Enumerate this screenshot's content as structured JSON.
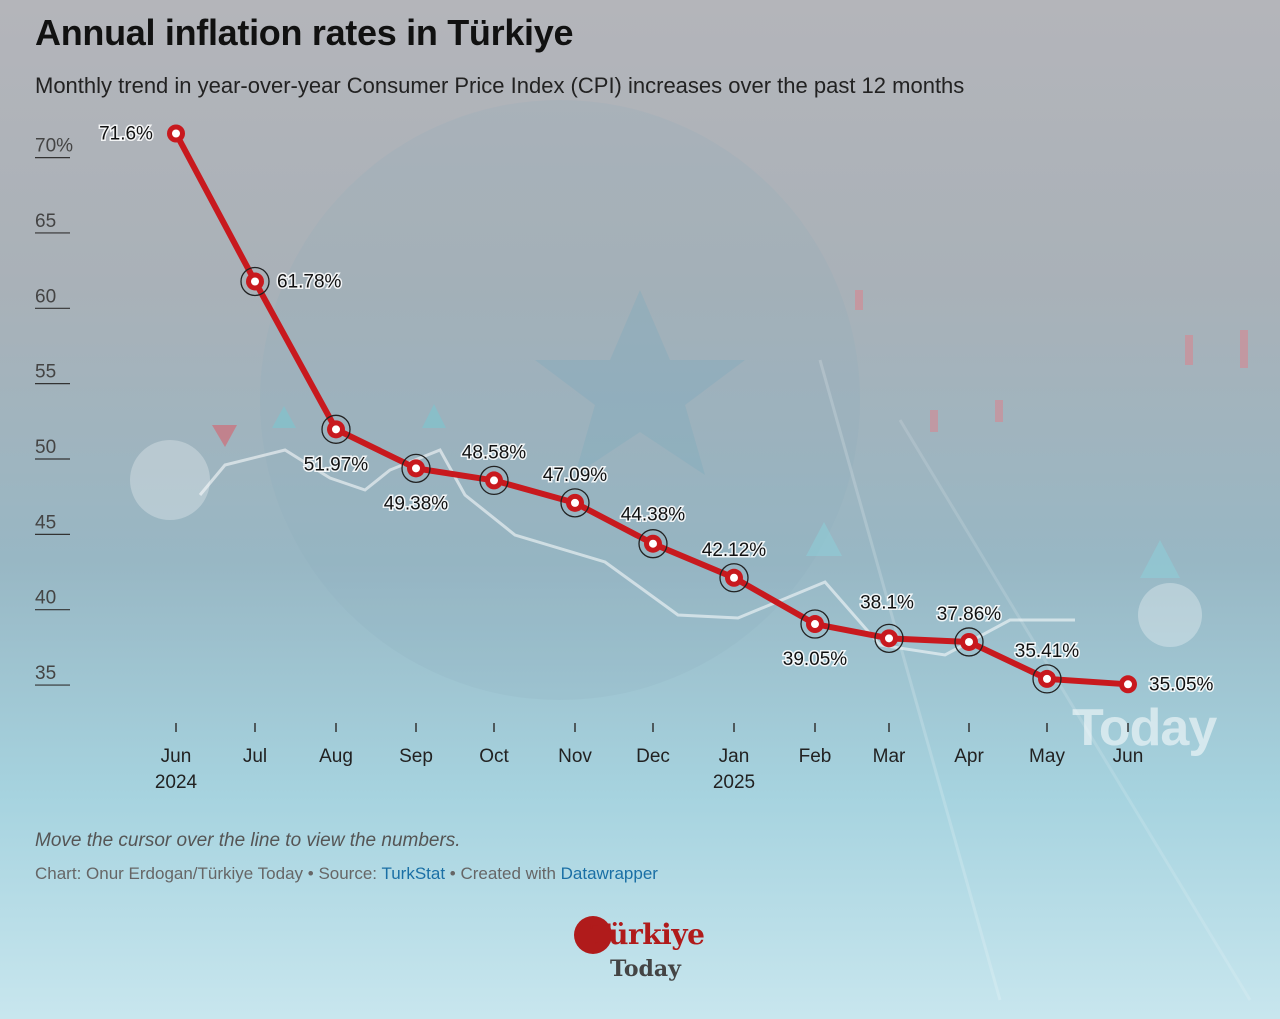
{
  "title": "Annual inflation rates in Türkiye",
  "subtitle": "Monthly trend in year-over-year Consumer Price Index (CPI) increases over the past 12 months",
  "notes": "Move the cursor over the line to view the numbers.",
  "footer": {
    "prefix": "Chart: Onur Erdogan/Türkiye Today • Source: ",
    "source_link": "TurkStat",
    "middle": " • Created with ",
    "tool_link": "Datawrapper"
  },
  "logo": {
    "main": "Türkiye",
    "sub": "Today"
  },
  "watermark": "Today",
  "colors": {
    "line": "#c8191e",
    "marker_fill": "#ffffff",
    "text": "#111111"
  },
  "chart_data": {
    "type": "line",
    "title": "Annual inflation rates in Türkiye",
    "x": [
      "Jun",
      "Jul",
      "Aug",
      "Sep",
      "Oct",
      "Nov",
      "Dec",
      "Jan",
      "Feb",
      "Mar",
      "Apr",
      "May",
      "Jun"
    ],
    "x_year_labels": {
      "0": "2024",
      "7": "2025"
    },
    "series": [
      {
        "values": [
          71.6,
          61.78,
          51.97,
          49.38,
          48.58,
          47.09,
          44.38,
          42.12,
          39.05,
          38.1,
          37.86,
          35.41,
          35.05
        ]
      }
    ],
    "data_labels": [
      "71.6%",
      "61.78%",
      "51.97%",
      "49.38%",
      "48.58%",
      "47.09%",
      "44.38%",
      "42.12%",
      "39.05%",
      "38.1%",
      "37.86%",
      "35.41%",
      "35.05%"
    ],
    "y_ticks": [
      {
        "value": 70,
        "label": "70%"
      },
      {
        "value": 65,
        "label": "65"
      },
      {
        "value": 60,
        "label": "60"
      },
      {
        "value": 55,
        "label": "55"
      },
      {
        "value": 50,
        "label": "50"
      },
      {
        "value": 45,
        "label": "45"
      },
      {
        "value": 40,
        "label": "40"
      },
      {
        "value": 35,
        "label": "35"
      }
    ],
    "ylim": [
      32,
      71.6
    ],
    "grid": false,
    "legend": "none"
  }
}
